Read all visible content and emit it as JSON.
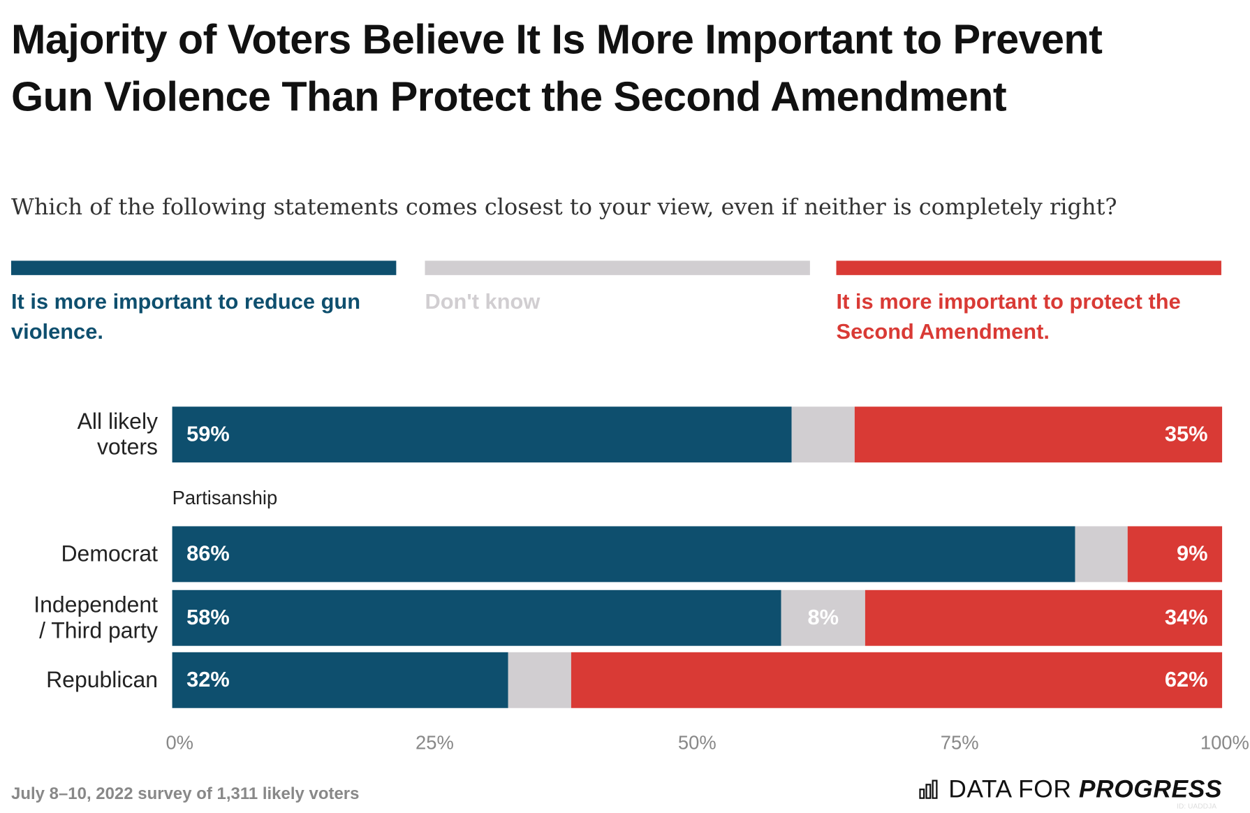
{
  "chart_data": {
    "type": "stacked-bar-horizontal",
    "title": "Majority of Voters Believe It Is More Important to Prevent Gun Violence Than Protect the Second Amendment",
    "subtitle": "Which of the following statements comes closest to your view, even if neither is completely right?",
    "categories": [
      "All likely voters",
      "Democrat",
      "Independent / Third party",
      "Republican"
    ],
    "group_label": "Partisanship",
    "series": [
      {
        "name": "It is more important to reduce gun violence.",
        "color": "#0e4f6e",
        "values": [
          59,
          86,
          58,
          32
        ],
        "value_labels": [
          "59%",
          "86%",
          "58%",
          "32%"
        ]
      },
      {
        "name": "Don't know",
        "color": "#d1ced1",
        "values": [
          6,
          5,
          8,
          6
        ],
        "value_labels": [
          null,
          null,
          "8%",
          null
        ]
      },
      {
        "name": "It is more important to protect the Second Amendment.",
        "color": "#d93a35",
        "values": [
          35,
          9,
          34,
          62
        ],
        "value_labels": [
          "35%",
          "9%",
          "34%",
          "62%"
        ]
      }
    ],
    "xlim": [
      0,
      100
    ],
    "xticks": [
      {
        "value": 0,
        "label": "0%"
      },
      {
        "value": 25,
        "label": "25%"
      },
      {
        "value": 50,
        "label": "50%"
      },
      {
        "value": 75,
        "label": "75%"
      },
      {
        "value": 100,
        "label": "100%"
      }
    ],
    "note": "July 8–10, 2022 survey of 1,311 likely voters",
    "logo": {
      "first": "DATA FOR",
      "second": "PROGRESS"
    },
    "id_note": "ID: UADDJA"
  }
}
